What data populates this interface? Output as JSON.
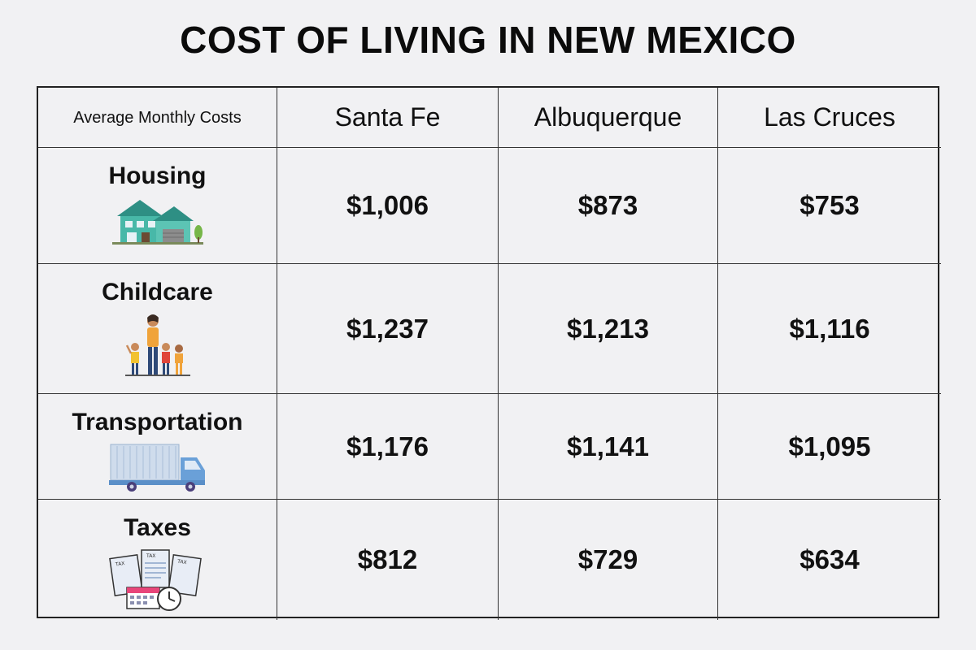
{
  "title": "COST OF LIVING IN NEW MEXICO",
  "header": {
    "corner_label": "Average Monthly Costs",
    "cities": [
      "Santa Fe",
      "Albuquerque",
      "Las Cruces"
    ]
  },
  "rows": [
    {
      "category": "Housing",
      "icon": "house-icon",
      "values": [
        "$1,006",
        "$873",
        "$753"
      ]
    },
    {
      "category": "Childcare",
      "icon": "family-icon",
      "values": [
        "$1,237",
        "$1,213",
        "$1,116"
      ]
    },
    {
      "category": "Transportation",
      "icon": "truck-icon",
      "values": [
        "$1,176",
        "$1,141",
        "$1,095"
      ]
    },
    {
      "category": "Taxes",
      "icon": "tax-forms-icon",
      "values": [
        "$812",
        "$729",
        "$634"
      ]
    }
  ],
  "chart_data": {
    "type": "table",
    "title": "COST OF LIVING IN NEW MEXICO",
    "columns": [
      "Average Monthly Costs",
      "Santa Fe",
      "Albuquerque",
      "Las Cruces"
    ],
    "rows": [
      [
        "Housing",
        1006,
        873,
        753
      ],
      [
        "Childcare",
        1237,
        1213,
        1116
      ],
      [
        "Transportation",
        1176,
        1141,
        1095
      ],
      [
        "Taxes",
        812,
        729,
        634
      ]
    ]
  },
  "colors": {
    "background": "#f1f1f3",
    "border": "#222222",
    "house": "#3fb3a3",
    "truck": "#7fa9d6"
  }
}
